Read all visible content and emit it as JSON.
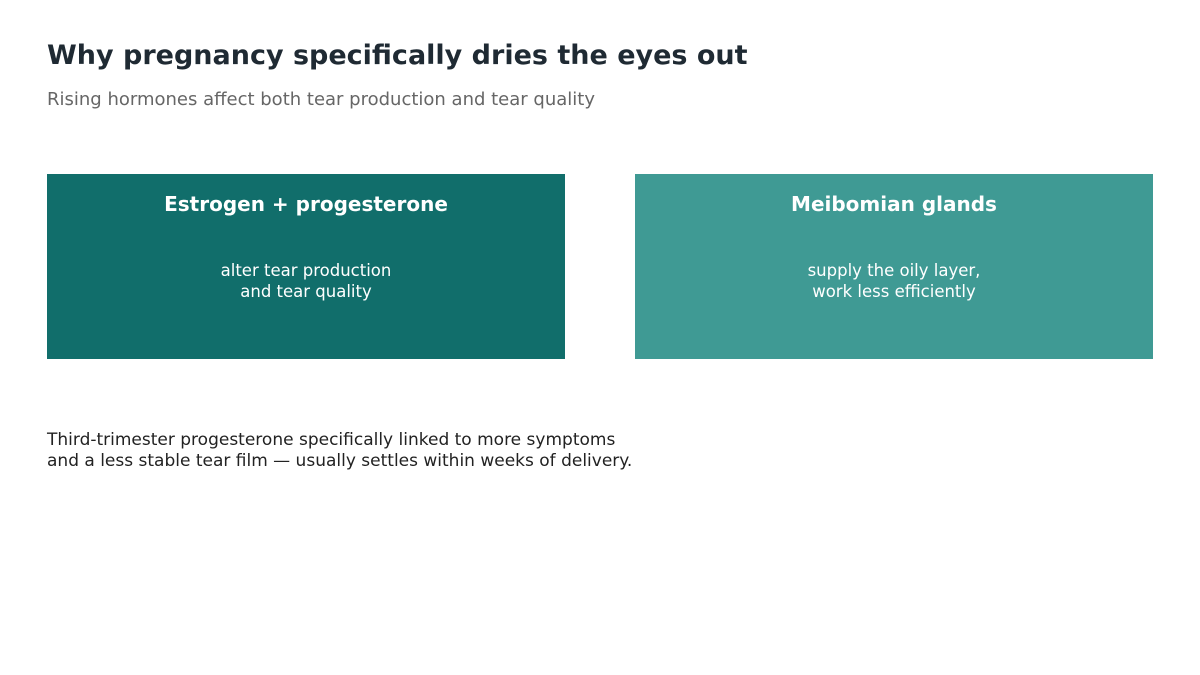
{
  "header": {
    "title": "Why pregnancy specifically dries the eyes out",
    "subtitle": "Rising hormones affect both tear production and tear quality"
  },
  "boxes": [
    {
      "heading": "Estrogen + progesterone",
      "body": [
        "alter tear production",
        "and tear quality"
      ]
    },
    {
      "heading": "Meibomian glands",
      "body": [
        "supply the oily layer,",
        "work less efficiently"
      ]
    }
  ],
  "footnote": [
    "Third-trimester progesterone specifically linked to more symptoms",
    "and a less stable tear film — usually settles within weeks of delivery."
  ]
}
